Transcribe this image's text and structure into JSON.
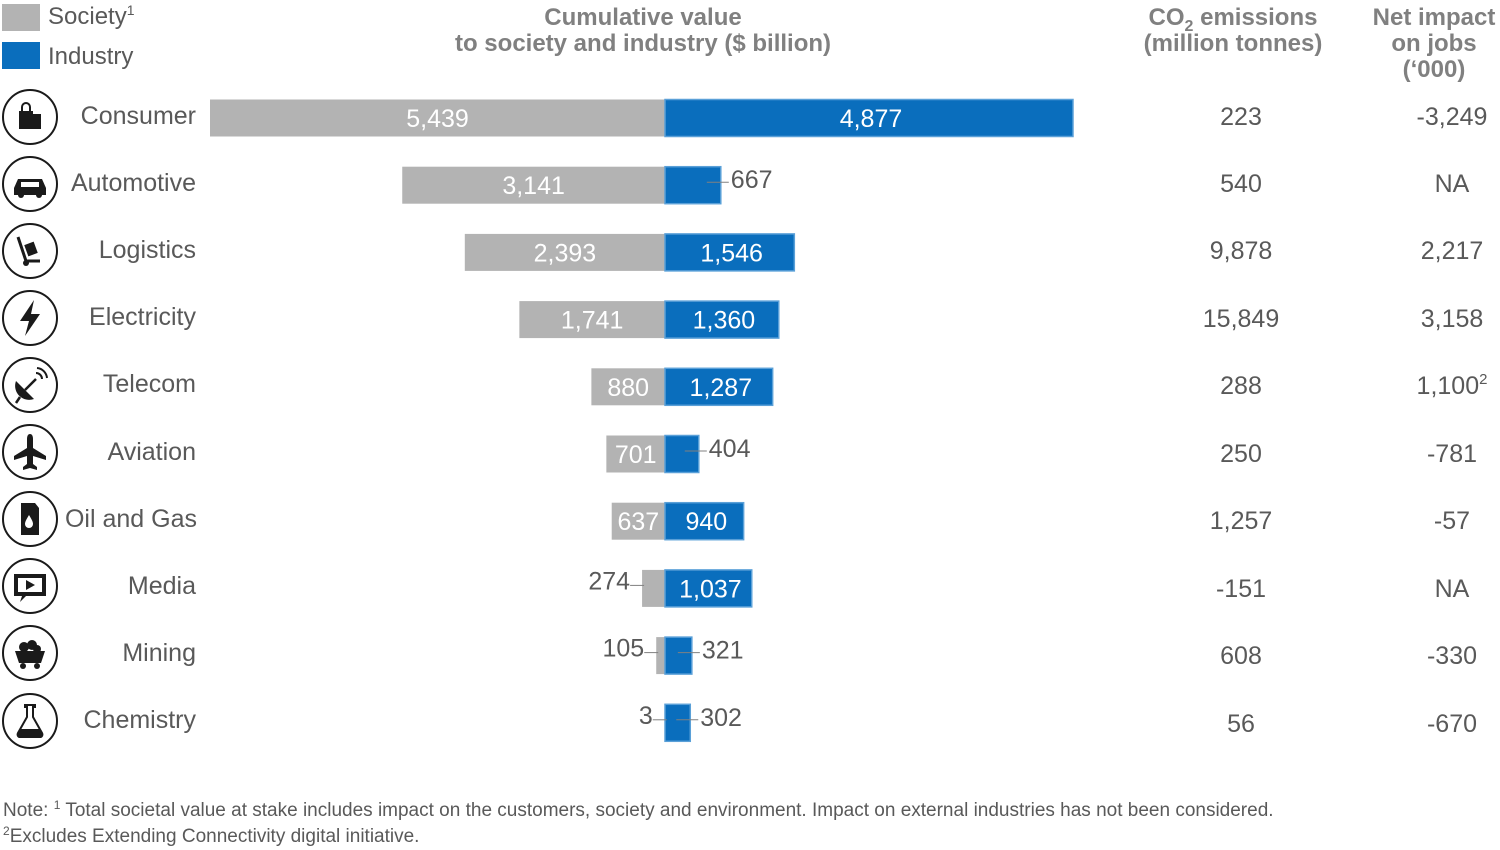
{
  "legend": {
    "society_label": "Society",
    "society_sup": "1",
    "industry_label": "Industry",
    "society_color": "#b3b3b3",
    "industry_color": "#0a6ebd"
  },
  "headers": {
    "value_line1": "Cumulative value",
    "value_line2": "to society and industry ($ billion)",
    "co2_prefix": "CO",
    "co2_sub": "2",
    "co2_suffix": " emissions",
    "co2_line2": "(million tonnes)",
    "jobs_line1": "Net impact",
    "jobs_line2": "on jobs",
    "jobs_line3": "(‘000)"
  },
  "rows": [
    {
      "label": "Consumer",
      "icon": "shopping-bag-icon",
      "co2": "223",
      "jobs": "-3,249",
      "jobs_sup": ""
    },
    {
      "label": "Automotive",
      "icon": "car-icon",
      "co2": "540",
      "jobs": "NA",
      "jobs_sup": ""
    },
    {
      "label": "Logistics",
      "icon": "hand-truck-icon",
      "co2": "9,878",
      "jobs": "2,217",
      "jobs_sup": ""
    },
    {
      "label": "Electricity",
      "icon": "lightning-icon",
      "co2": "15,849",
      "jobs": "3,158",
      "jobs_sup": ""
    },
    {
      "label": "Telecom",
      "icon": "satellite-dish-icon",
      "co2": "288",
      "jobs": "1,100",
      "jobs_sup": "2"
    },
    {
      "label": "Aviation",
      "icon": "airplane-icon",
      "co2": "250",
      "jobs": "-781",
      "jobs_sup": ""
    },
    {
      "label": "Oil and Gas",
      "icon": "oil-can-icon",
      "co2": "1,257",
      "jobs": "-57",
      "jobs_sup": ""
    },
    {
      "label": "Media",
      "icon": "film-screen-icon",
      "co2": "-151",
      "jobs": "NA",
      "jobs_sup": ""
    },
    {
      "label": "Mining",
      "icon": "mine-cart-icon",
      "co2": "608",
      "jobs": "-330",
      "jobs_sup": ""
    },
    {
      "label": "Chemistry",
      "icon": "flask-icon",
      "co2": "56",
      "jobs": "-670",
      "jobs_sup": ""
    }
  ],
  "chart_data": {
    "type": "bar",
    "orientation": "horizontal-diverging",
    "title": "Cumulative value to society and industry ($ billion)",
    "categories": [
      "Consumer",
      "Automotive",
      "Logistics",
      "Electricity",
      "Telecom",
      "Aviation",
      "Oil and Gas",
      "Media",
      "Mining",
      "Chemistry"
    ],
    "series": [
      {
        "name": "Society",
        "values": [
          5439,
          3141,
          2393,
          1741,
          880,
          701,
          637,
          274,
          105,
          3
        ],
        "labels": [
          "5,439",
          "3,141",
          "2,393",
          "1,741",
          "880",
          "701",
          "637",
          "274",
          "105",
          "3"
        ]
      },
      {
        "name": "Industry",
        "values": [
          4877,
          667,
          1546,
          1360,
          1287,
          404,
          940,
          1037,
          321,
          302
        ],
        "labels": [
          "4,877",
          "667",
          "1,546",
          "1,360",
          "1,287",
          "404",
          "940",
          "1,037",
          "321",
          "302"
        ]
      }
    ]
  },
  "footnotes": {
    "note_prefix": "Note: ",
    "note_sup": "1",
    "note_text": " Total societal value at stake includes impact on the customers, society and environment. Impact on external industries has not been considered.",
    "note2_sup": "2",
    "note2_text": "Excludes Extending Connectivity digital initiative."
  }
}
